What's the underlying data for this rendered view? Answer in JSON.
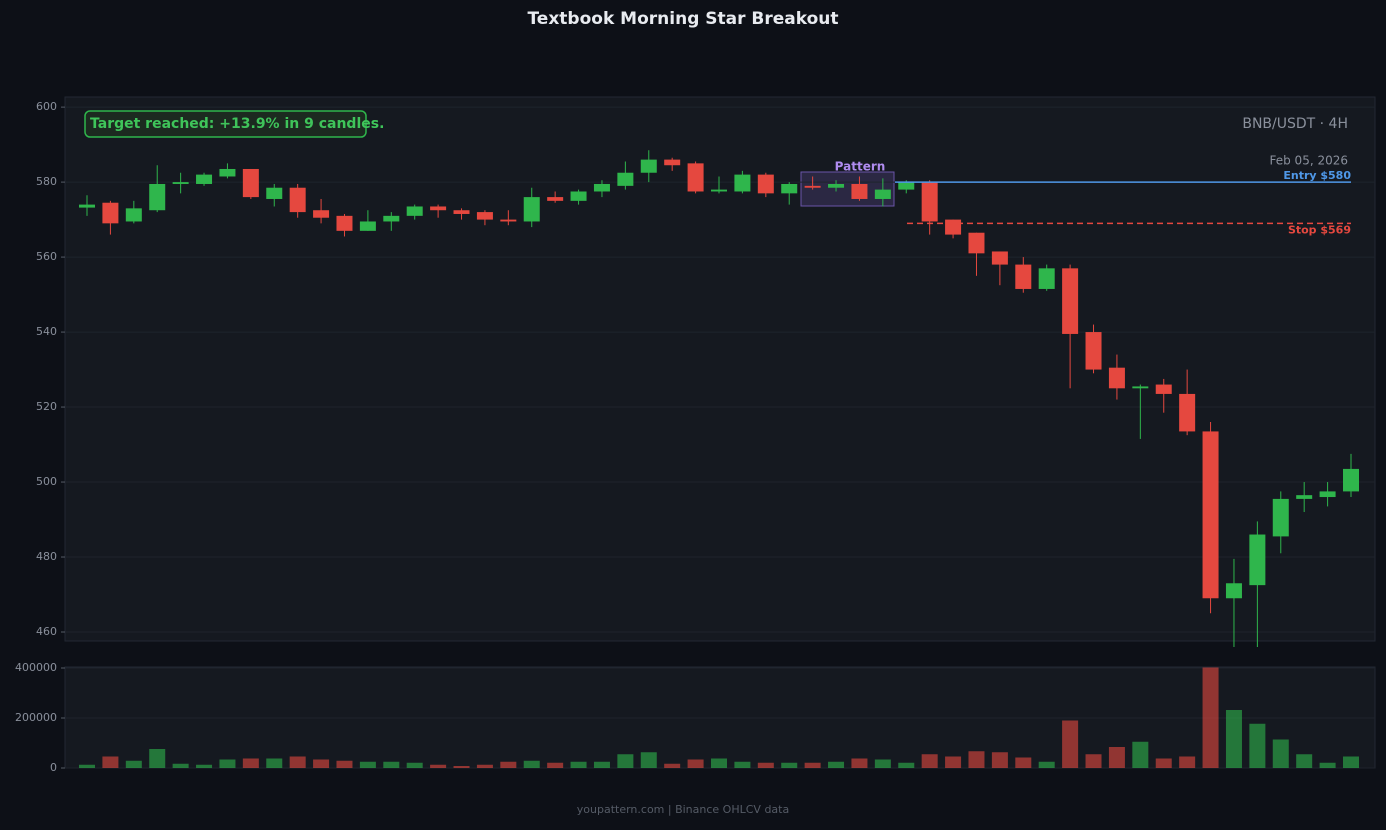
{
  "chart_data": {
    "type": "candlestick",
    "title": "Textbook Morning Star Breakout",
    "annotation": "Target reached: +13.9% in 9 candles.",
    "symbol": "BNB/USDT · 4H",
    "date": "Feb 05, 2026",
    "pattern_label": "Pattern",
    "footer": "youpattern.com | Binance OHLCV data",
    "up_color": "#2fb64c",
    "down_color": "#e5483f",
    "ylim": [
      457.6,
      602.7
    ],
    "yticks": [
      460,
      480,
      500,
      520,
      540,
      560,
      580,
      600
    ],
    "volume_ylim": [
      0,
      404000
    ],
    "volume_yticks": [
      0,
      200000,
      400000
    ],
    "grid": true,
    "levels": [
      {
        "label": "Entry $580",
        "value": 580,
        "color": "#4f98e8",
        "dashed": false
      },
      {
        "label": "Stop $569",
        "value": 569,
        "color": "#e5483f",
        "dashed": true
      }
    ],
    "open": [
      573.2,
      574.5,
      569.5,
      572.5,
      579.5,
      579.5,
      581.5,
      583.5,
      575.5,
      578.5,
      572.5,
      571,
      567,
      569.5,
      571,
      573.5,
      572.5,
      572,
      570,
      569.5,
      576,
      575,
      577.5,
      579,
      582.5,
      586,
      585,
      577.5,
      577.5,
      582,
      577,
      579,
      578.5,
      579.5,
      575.5,
      578,
      580,
      570,
      566.5,
      561.5,
      558,
      551.5,
      557,
      540,
      530.5,
      525,
      526,
      523.5,
      513.5,
      469,
      472.5,
      485.5,
      495.5,
      496,
      497.5
    ],
    "high": [
      576.5,
      575,
      575,
      584.5,
      582.5,
      582.5,
      585,
      583.5,
      579.5,
      579.5,
      575.5,
      571.5,
      572.5,
      572,
      574,
      574,
      573,
      572.5,
      572.5,
      578.5,
      577.5,
      578,
      580.5,
      585.5,
      588.5,
      586.5,
      585.5,
      581.5,
      583,
      582.5,
      580,
      581.5,
      580.5,
      581.5,
      581,
      580.5,
      580.5,
      570,
      566.5,
      561.5,
      560,
      558,
      558,
      542,
      534,
      526,
      527.5,
      530,
      516,
      479.5,
      489.5,
      497.5,
      500,
      500,
      507.5
    ],
    "low": [
      571,
      566,
      569,
      572,
      577,
      579,
      581,
      575.5,
      573.5,
      570.5,
      569,
      565.5,
      567,
      567,
      570,
      570.5,
      570,
      568.5,
      568.5,
      568,
      574.5,
      574,
      576,
      578,
      580,
      583,
      577,
      577,
      577,
      576,
      574,
      578,
      577.5,
      575,
      573.5,
      577,
      566,
      565,
      555,
      552.5,
      550.5,
      551,
      525,
      529,
      522,
      511.5,
      518.5,
      512.5,
      465,
      456,
      456,
      481,
      492,
      493.5,
      496
    ],
    "close": [
      574,
      569,
      573,
      579.5,
      580,
      582,
      583.5,
      576,
      578.5,
      572,
      570.5,
      567,
      569.5,
      571,
      573.5,
      572.5,
      571.5,
      570,
      569.5,
      576,
      575,
      577.5,
      579.5,
      582.5,
      586,
      584.5,
      577.5,
      578,
      582,
      577,
      579.5,
      578.5,
      579.5,
      575.5,
      578,
      580,
      569.5,
      566,
      561,
      558,
      551.5,
      557,
      539.5,
      530,
      525,
      525.5,
      523.5,
      513.5,
      469,
      473,
      486,
      495.5,
      496.5,
      497.5,
      503.5
    ],
    "volume": [
      13000,
      46000,
      29000,
      76000,
      17000,
      13000,
      34000,
      38000,
      38000,
      46000,
      34000,
      29000,
      25000,
      25000,
      21000,
      13000,
      8000,
      13000,
      25000,
      29000,
      21000,
      25000,
      25000,
      55000,
      63000,
      17000,
      34000,
      38000,
      25000,
      21000,
      21000,
      21000,
      25000,
      38000,
      34000,
      21000,
      55000,
      46000,
      67000,
      63000,
      42000,
      25000,
      190000,
      55000,
      84000,
      105000,
      38000,
      46000,
      402000,
      232000,
      177000,
      114000,
      55000,
      21000,
      46000
    ]
  }
}
